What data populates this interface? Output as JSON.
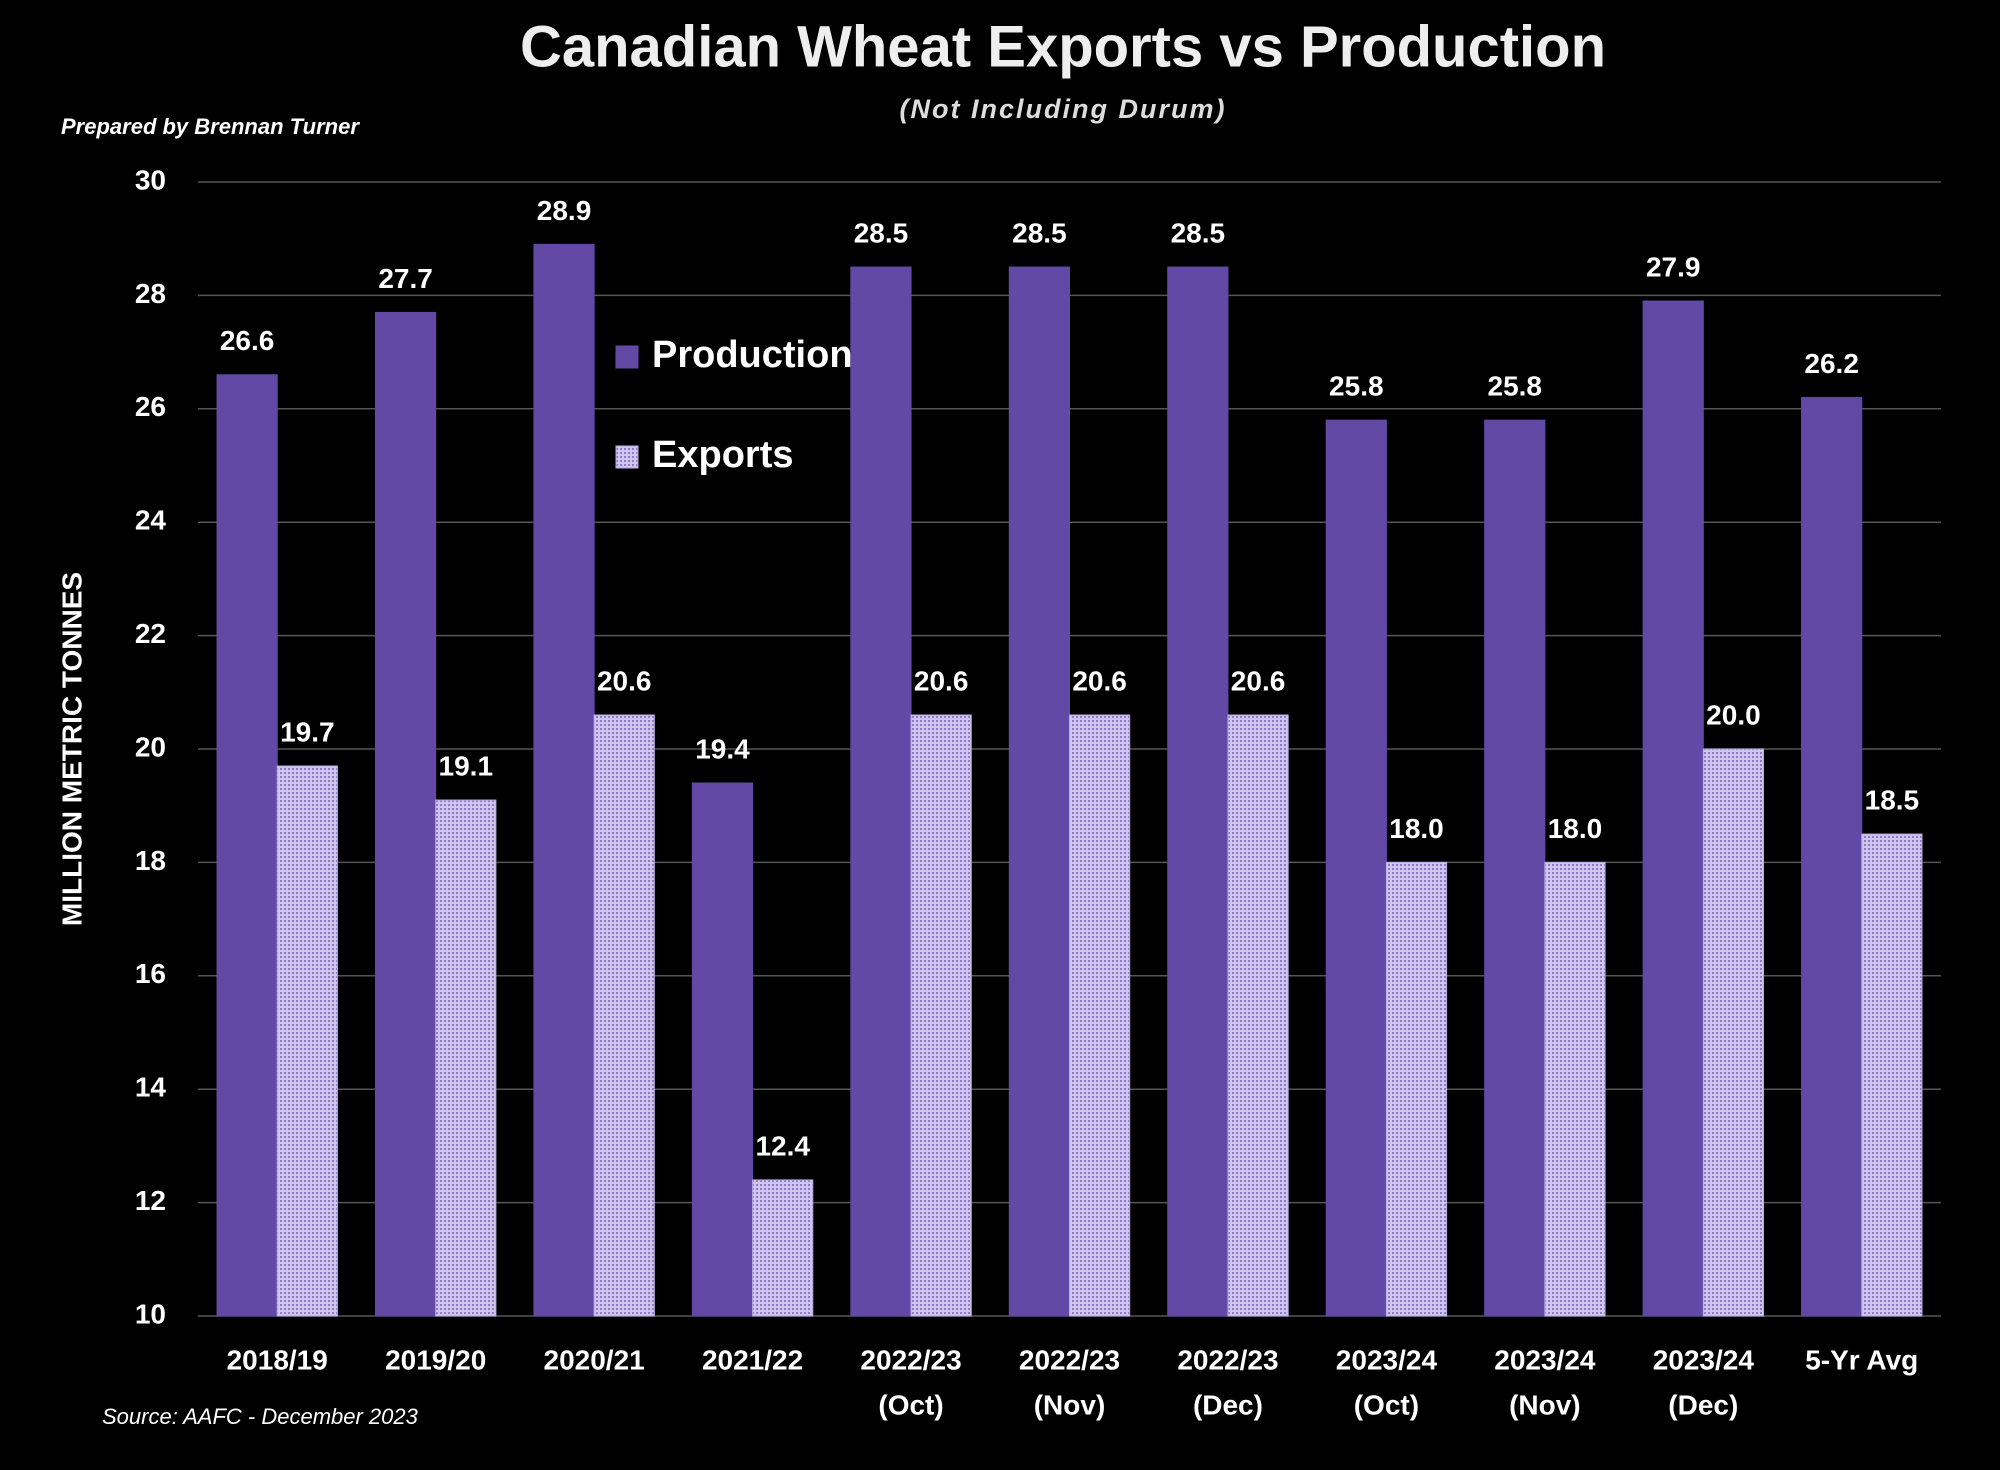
{
  "chart_data": {
    "type": "bar",
    "title": "Canadian Wheat Exports vs Production",
    "subtitle": "(Not Including Durum)",
    "author_note": "Prepared by Brennan Turner",
    "source": "Source: AAFC -  December 2023",
    "y_label": "MILLION METRIC TONNES",
    "categories": [
      [
        "2018/19"
      ],
      [
        "2019/20"
      ],
      [
        "2020/21"
      ],
      [
        "2021/22"
      ],
      [
        "2022/23",
        "(Oct)"
      ],
      [
        "2022/23",
        "(Nov)"
      ],
      [
        "2022/23",
        "(Dec)"
      ],
      [
        "2023/24",
        "(Oct)"
      ],
      [
        "2023/24",
        "(Nov)"
      ],
      [
        "2023/24",
        "(Dec)"
      ],
      [
        "5-Yr Avg"
      ]
    ],
    "series": [
      {
        "name": "Production",
        "color": "#6249a6",
        "values": [
          26.6,
          27.7,
          28.9,
          19.4,
          28.5,
          28.5,
          28.5,
          25.8,
          25.8,
          27.9,
          26.2
        ],
        "value_labels": [
          "26.6",
          "27.7",
          "28.9",
          "19.4",
          "28.5",
          "28.5",
          "28.5",
          "25.8",
          "25.8",
          "27.9",
          "26.2"
        ]
      },
      {
        "name": "Exports",
        "color": "#b9abe0",
        "values": [
          19.7,
          19.1,
          20.6,
          12.4,
          20.6,
          20.6,
          20.6,
          18.0,
          18.0,
          20.0,
          18.5
        ],
        "value_labels": [
          "19.7",
          "19.1",
          "20.6",
          "12.4",
          "20.6",
          "20.6",
          "20.6",
          "18.0",
          "18.0",
          "20.0",
          "18.5"
        ]
      }
    ],
    "ylim": [
      10,
      30
    ],
    "yticks": [
      10,
      12,
      14,
      16,
      18,
      20,
      22,
      24,
      26,
      28,
      30
    ],
    "grid": true
  }
}
